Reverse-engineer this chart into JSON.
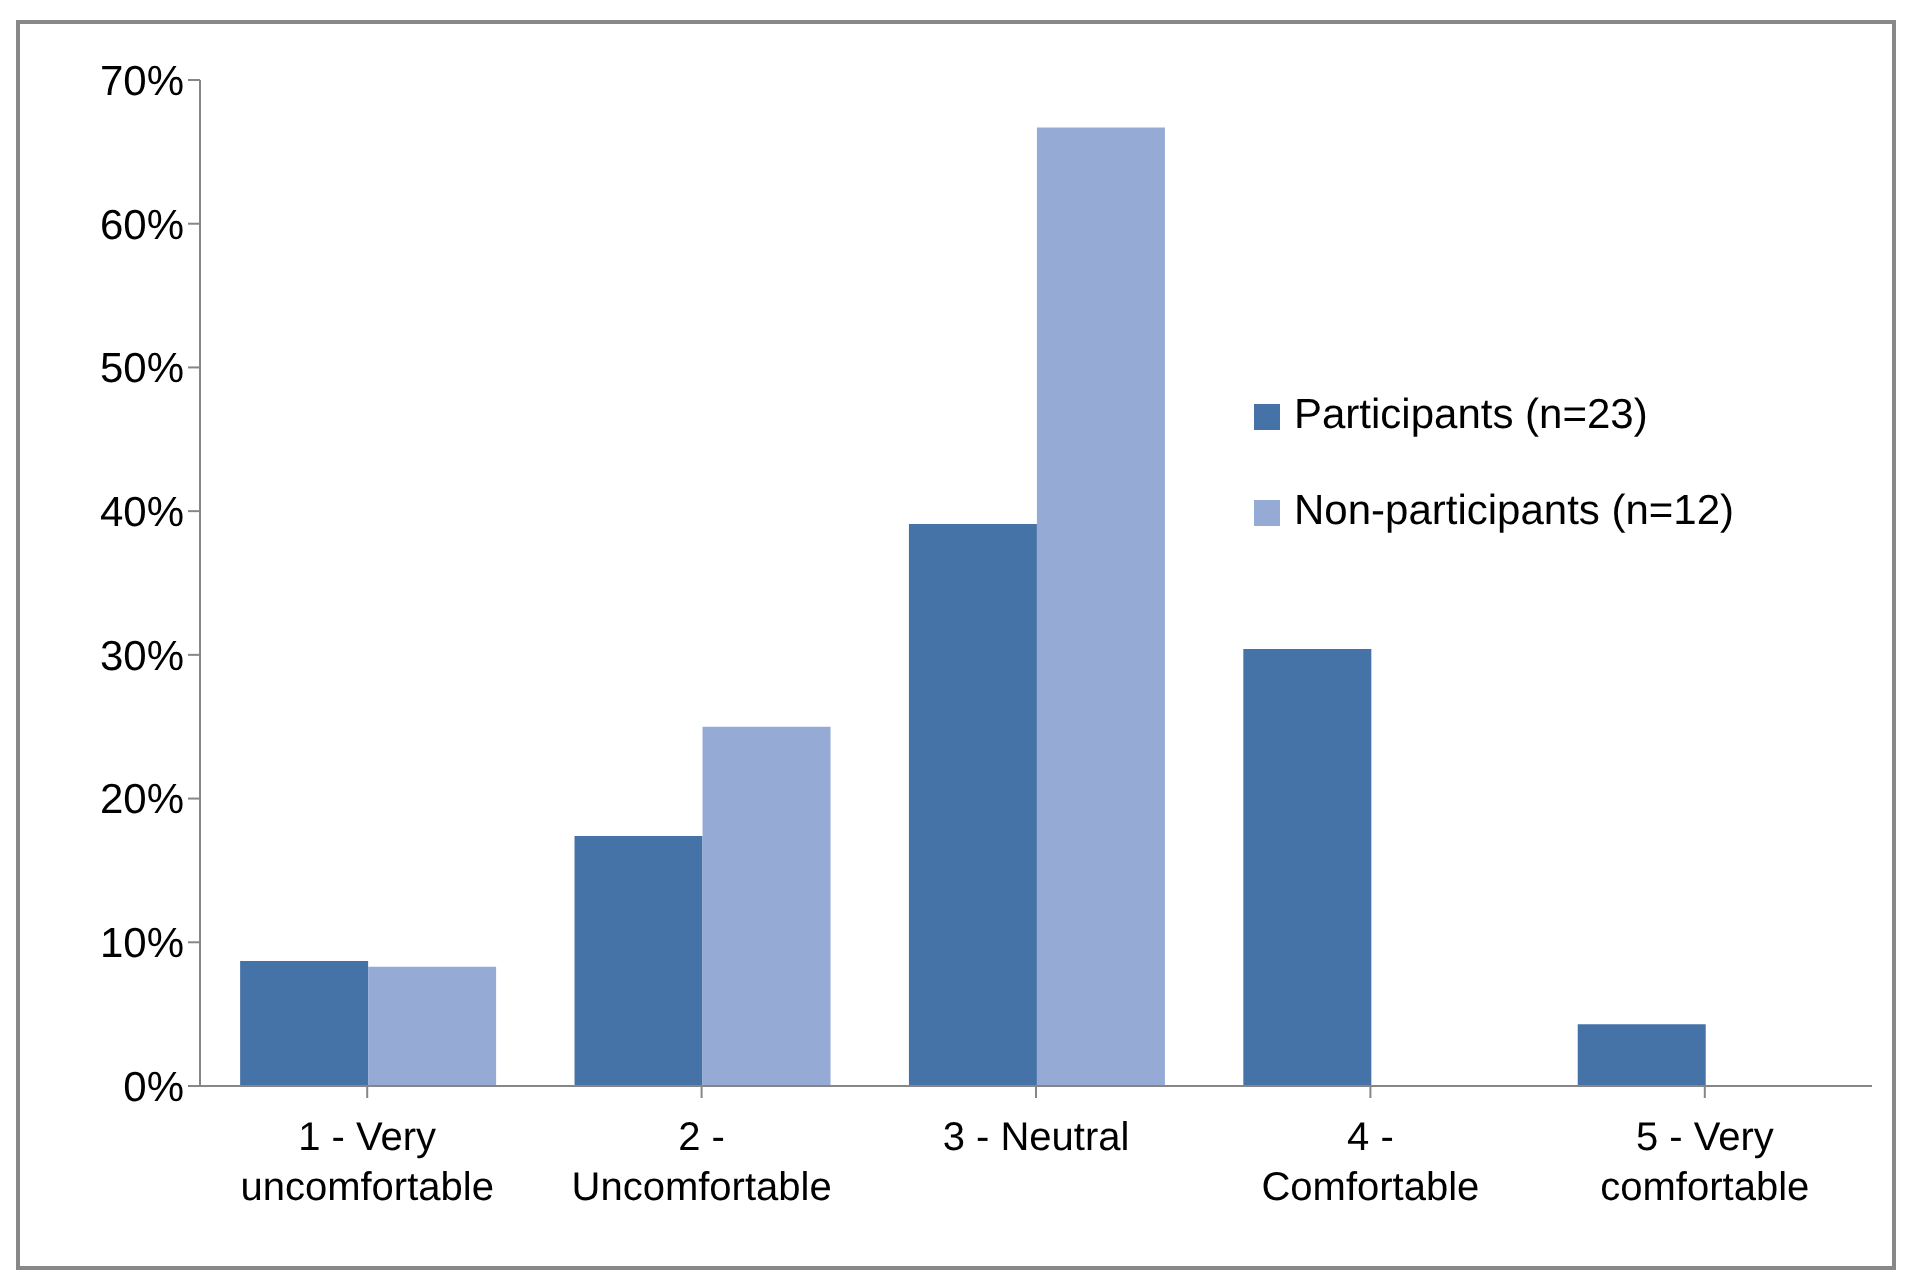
{
  "chart_data": {
    "type": "bar",
    "categories": [
      "1 - Very uncomfortable",
      "2 - Uncomfortable",
      "3 - Neutral",
      "4 - Comfortable",
      "5 - Very comfortable"
    ],
    "series": [
      {
        "name": "Participants (n=23)",
        "color": "#4572a7",
        "values": [
          8.7,
          17.4,
          39.1,
          30.4,
          4.3
        ]
      },
      {
        "name": "Non-participants (n=12)",
        "color": "#95abd6",
        "values": [
          8.3,
          25.0,
          66.7,
          0,
          0
        ]
      }
    ],
    "ylim": [
      0,
      70
    ],
    "yticks": [
      {
        "value": 0,
        "label": "0%"
      },
      {
        "value": 10,
        "label": "10%"
      },
      {
        "value": 20,
        "label": "20%"
      },
      {
        "value": 30,
        "label": "30%"
      },
      {
        "value": 40,
        "label": "40%"
      },
      {
        "value": 50,
        "label": "50%"
      },
      {
        "value": 60,
        "label": "60%"
      },
      {
        "value": 70,
        "label": "70%"
      }
    ],
    "grid": false,
    "legend": "right"
  }
}
